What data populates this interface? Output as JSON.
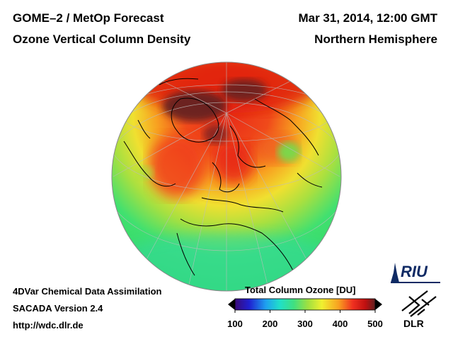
{
  "header": {
    "title_left": "GOME–2 / MetOp Forecast",
    "subtitle_left": "Ozone Vertical Column Density",
    "title_right": "Mar 31, 2014, 12:00 GMT",
    "subtitle_right": "Northern Hemisphere"
  },
  "footer": {
    "line1": "4DVar Chemical Data Assimilation",
    "line2": "SACADA Version 2.4",
    "line3": "http://wdc.dlr.de"
  },
  "colorbar": {
    "title": "Total Column Ozone [DU]",
    "ticks": [
      "100",
      "200",
      "300",
      "400",
      "500"
    ],
    "min": 100,
    "max": 500,
    "colors": [
      "#3a0a78",
      "#1f1fd0",
      "#1ea0f0",
      "#20e0c8",
      "#40e080",
      "#a0e040",
      "#f0f030",
      "#f8a020",
      "#f03020",
      "#c01010",
      "#602020"
    ]
  },
  "logos": {
    "riu": "RIU",
    "dlr": "DLR"
  }
}
